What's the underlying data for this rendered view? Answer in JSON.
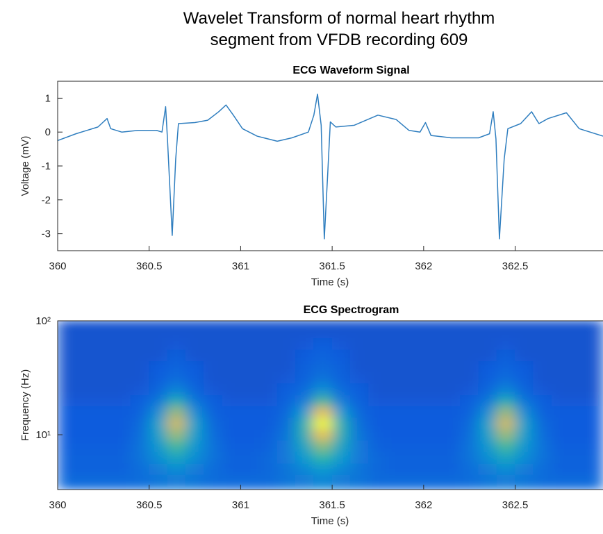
{
  "title": [
    "Wavelet Transform of normal heart rhythm",
    "segment from VFDB recording 609"
  ],
  "chart_data": [
    {
      "type": "line",
      "title": "ECG Waveform Signal",
      "x_label": "Time (s)",
      "y_label": "Voltage (mV)",
      "xlim": [
        360,
        362.98
      ],
      "ylim": [
        -3.5,
        1.5
      ],
      "xticks": [
        360,
        360.5,
        361,
        361.5,
        362,
        362.5
      ],
      "yticks": [
        1,
        0,
        -1,
        -2,
        -3
      ],
      "series": [
        {
          "color": "#2f7ebf",
          "x": [
            360,
            360.1,
            360.22,
            360.27,
            360.29,
            360.35,
            360.44,
            360.54,
            360.57,
            360.59,
            360.6,
            360.626,
            360.645,
            360.66,
            360.75,
            360.82,
            360.88,
            360.92,
            360.96,
            361.01,
            361.09,
            361.2,
            361.28,
            361.37,
            361.4,
            361.42,
            361.44,
            361.457,
            361.476,
            361.49,
            361.52,
            361.62,
            361.75,
            361.85,
            361.92,
            361.98,
            362.01,
            362.04,
            362.15,
            362.3,
            362.36,
            362.38,
            362.395,
            362.414,
            362.44,
            362.46,
            362.53,
            362.59,
            362.63,
            362.68,
            362.78,
            362.85,
            362.98
          ],
          "values": [
            -0.25,
            -0.05,
            0.15,
            0.4,
            0.1,
            0,
            0.05,
            0.05,
            0,
            0.75,
            -0.2,
            -3.05,
            -0.8,
            0.25,
            0.28,
            0.35,
            0.6,
            0.8,
            0.5,
            0.1,
            -0.12,
            -0.27,
            -0.17,
            0,
            0.5,
            1.12,
            0.2,
            -3.15,
            -1.2,
            0.3,
            0.15,
            0.2,
            0.5,
            0.37,
            0.05,
            0,
            0.28,
            -0.1,
            -0.17,
            -0.17,
            -0.05,
            0.6,
            -0.2,
            -3.15,
            -0.8,
            0.1,
            0.25,
            0.6,
            0.25,
            0.4,
            0.57,
            0.1,
            -0.12
          ]
        }
      ]
    },
    {
      "type": "heatmap",
      "title": "ECG Spectrogram",
      "x_label": "Time (s)",
      "y_label": "Frequency (Hz)",
      "xlim": [
        360,
        362.98
      ],
      "ylim": [
        3.3,
        100
      ],
      "y_log": true,
      "colormap": "parula",
      "clim": [
        0,
        1
      ],
      "xticks": [
        360,
        360.5,
        361,
        361.5,
        362,
        362.5
      ],
      "yticks": [
        {
          "value": 10,
          "label": "10¹"
        },
        {
          "value": 100,
          "label": "10²"
        }
      ],
      "x": [
        360.05,
        360.15,
        360.25,
        360.35,
        360.45,
        360.55,
        360.65,
        360.75,
        360.85,
        360.95,
        361.05,
        361.15,
        361.25,
        361.35,
        361.45,
        361.55,
        361.65,
        361.75,
        361.85,
        361.95,
        362.05,
        362.15,
        362.25,
        362.35,
        362.45,
        362.55,
        362.65,
        362.75,
        362.85,
        362.95
      ],
      "y": [
        4,
        5,
        6.3,
        8,
        10,
        12.6,
        16,
        20,
        25,
        32,
        40,
        50,
        63,
        80
      ],
      "z": [
        [
          0.2,
          0.2,
          0.2,
          0.2,
          0.21,
          0.26,
          0.3,
          0.26,
          0.21,
          0.2,
          0.2,
          0.2,
          0.25,
          0.3,
          0.35,
          0.3,
          0.25,
          0.2,
          0.2,
          0.2,
          0.2,
          0.2,
          0.21,
          0.26,
          0.3,
          0.26,
          0.21,
          0.2,
          0.2,
          0.2
        ],
        [
          0.15,
          0.15,
          0.15,
          0.15,
          0.21,
          0.3,
          0.38,
          0.3,
          0.21,
          0.15,
          0.15,
          0.18,
          0.25,
          0.35,
          0.45,
          0.35,
          0.25,
          0.18,
          0.15,
          0.15,
          0.15,
          0.15,
          0.21,
          0.3,
          0.38,
          0.3,
          0.21,
          0.15,
          0.15,
          0.15
        ],
        [
          0.15,
          0.15,
          0.15,
          0.15,
          0.24,
          0.38,
          0.51,
          0.38,
          0.24,
          0.15,
          0.15,
          0.18,
          0.28,
          0.45,
          0.6,
          0.45,
          0.28,
          0.18,
          0.15,
          0.15,
          0.15,
          0.15,
          0.24,
          0.38,
          0.51,
          0.38,
          0.24,
          0.15,
          0.15,
          0.15
        ],
        [
          0.13,
          0.13,
          0.13,
          0.13,
          0.24,
          0.43,
          0.64,
          0.43,
          0.24,
          0.13,
          0.13,
          0.15,
          0.28,
          0.5,
          0.75,
          0.5,
          0.28,
          0.15,
          0.13,
          0.13,
          0.13,
          0.13,
          0.24,
          0.43,
          0.64,
          0.43,
          0.24,
          0.13,
          0.13,
          0.13
        ],
        [
          0.12,
          0.12,
          0.12,
          0.12,
          0.21,
          0.47,
          0.77,
          0.47,
          0.21,
          0.12,
          0.12,
          0.13,
          0.25,
          0.55,
          0.9,
          0.55,
          0.25,
          0.13,
          0.12,
          0.12,
          0.12,
          0.12,
          0.21,
          0.47,
          0.77,
          0.47,
          0.21,
          0.12,
          0.12,
          0.12
        ],
        [
          0.12,
          0.12,
          0.12,
          0.12,
          0.19,
          0.47,
          0.85,
          0.47,
          0.19,
          0.12,
          0.12,
          0.12,
          0.22,
          0.55,
          1,
          0.55,
          0.22,
          0.12,
          0.12,
          0.12,
          0.12,
          0.12,
          0.19,
          0.47,
          0.85,
          0.47,
          0.19,
          0.12,
          0.12,
          0.12
        ],
        [
          0.12,
          0.12,
          0.12,
          0.12,
          0.15,
          0.38,
          0.77,
          0.38,
          0.15,
          0.12,
          0.12,
          0.12,
          0.18,
          0.45,
          0.9,
          0.45,
          0.18,
          0.12,
          0.12,
          0.12,
          0.12,
          0.12,
          0.15,
          0.38,
          0.77,
          0.38,
          0.15,
          0.12,
          0.12,
          0.12
        ],
        [
          0.11,
          0.11,
          0.11,
          0.11,
          0.13,
          0.26,
          0.55,
          0.26,
          0.13,
          0.11,
          0.11,
          0.11,
          0.15,
          0.3,
          0.65,
          0.3,
          0.15,
          0.11,
          0.11,
          0.11,
          0.11,
          0.11,
          0.13,
          0.26,
          0.55,
          0.26,
          0.13,
          0.11,
          0.11,
          0.11
        ],
        [
          0.1,
          0.1,
          0.1,
          0.1,
          0.11,
          0.17,
          0.34,
          0.17,
          0.11,
          0.1,
          0.1,
          0.1,
          0.13,
          0.2,
          0.4,
          0.2,
          0.13,
          0.1,
          0.1,
          0.1,
          0.1,
          0.1,
          0.11,
          0.17,
          0.34,
          0.17,
          0.11,
          0.1,
          0.1,
          0.1
        ],
        [
          0.1,
          0.1,
          0.1,
          0.1,
          0.1,
          0.13,
          0.21,
          0.13,
          0.1,
          0.1,
          0.1,
          0.1,
          0.11,
          0.15,
          0.25,
          0.15,
          0.11,
          0.1,
          0.1,
          0.1,
          0.1,
          0.1,
          0.1,
          0.13,
          0.21,
          0.13,
          0.1,
          0.1,
          0.1,
          0.1
        ],
        [
          0.1,
          0.1,
          0.1,
          0.1,
          0.1,
          0.12,
          0.17,
          0.12,
          0.1,
          0.1,
          0.1,
          0.1,
          0.1,
          0.14,
          0.2,
          0.14,
          0.1,
          0.1,
          0.1,
          0.1,
          0.1,
          0.1,
          0.1,
          0.12,
          0.17,
          0.12,
          0.1,
          0.1,
          0.1,
          0.1
        ],
        [
          0.1,
          0.1,
          0.1,
          0.1,
          0.1,
          0.1,
          0.14,
          0.1,
          0.1,
          0.1,
          0.1,
          0.1,
          0.1,
          0.12,
          0.17,
          0.12,
          0.1,
          0.1,
          0.1,
          0.1,
          0.1,
          0.1,
          0.1,
          0.1,
          0.14,
          0.1,
          0.1,
          0.1,
          0.1,
          0.1
        ],
        [
          0.1,
          0.1,
          0.1,
          0.1,
          0.1,
          0.1,
          0.11,
          0.1,
          0.1,
          0.1,
          0.1,
          0.1,
          0.1,
          0.11,
          0.13,
          0.11,
          0.1,
          0.1,
          0.1,
          0.1,
          0.1,
          0.1,
          0.1,
          0.1,
          0.11,
          0.1,
          0.1,
          0.1,
          0.1,
          0.1
        ],
        [
          0.1,
          0.1,
          0.1,
          0.1,
          0.1,
          0.1,
          0.1,
          0.1,
          0.1,
          0.1,
          0.1,
          0.1,
          0.1,
          0.1,
          0.1,
          0.1,
          0.1,
          0.1,
          0.1,
          0.1,
          0.1,
          0.1,
          0.1,
          0.1,
          0.1,
          0.1,
          0.1,
          0.1,
          0.1,
          0.1
        ]
      ]
    }
  ]
}
